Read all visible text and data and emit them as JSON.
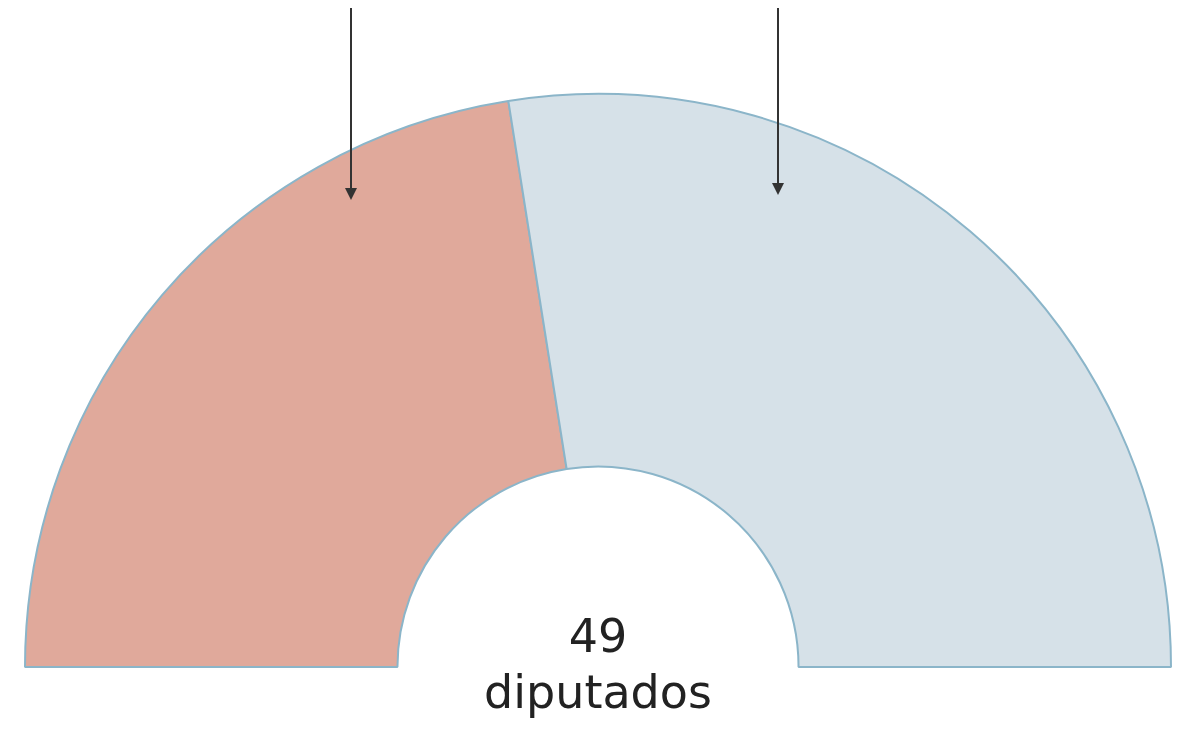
{
  "chart_data": {
    "type": "donut",
    "categories": [
      null,
      null
    ],
    "values": [
      45,
      55
    ],
    "colors": [
      "#e0a99b",
      "#d6e1e8"
    ],
    "annotations": [
      "49 diputados"
    ],
    "legend": false
  }
}
